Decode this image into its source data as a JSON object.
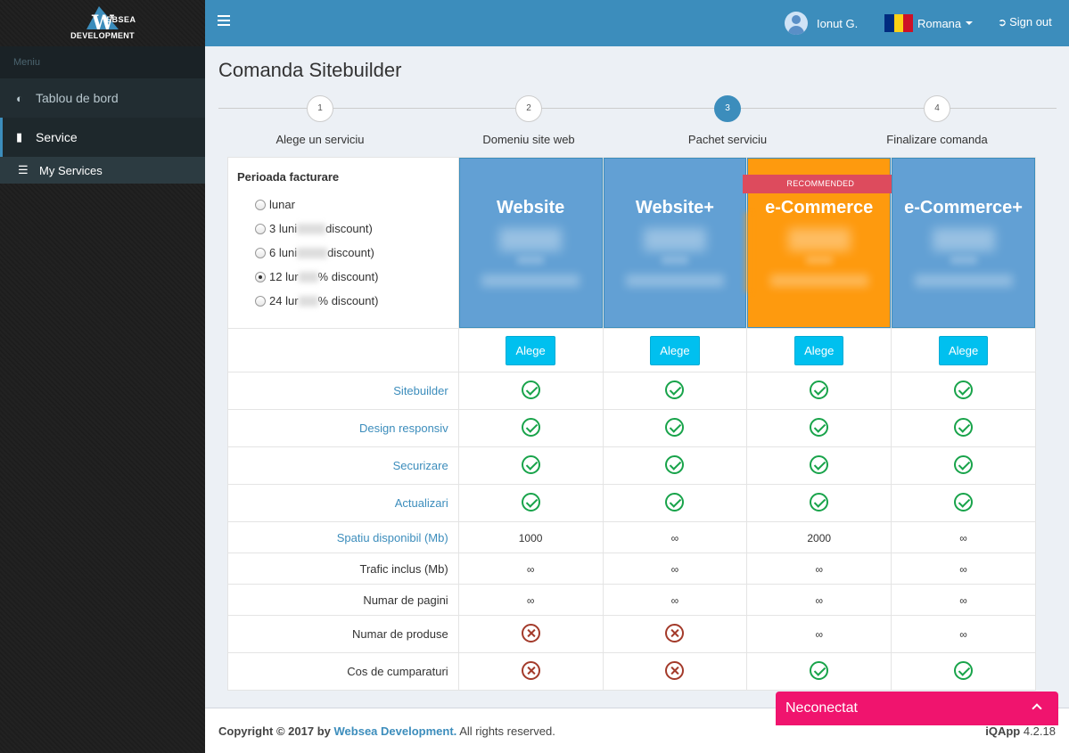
{
  "sidebar": {
    "logo_top": "EBSEA",
    "logo_letter": "W",
    "logo_bottom": "DEVELOPMENT",
    "menu_header": "Meniu",
    "items": [
      {
        "label": "Tablou de bord",
        "icon": "dashboard-icon"
      },
      {
        "label": "Service",
        "icon": "file-icon"
      }
    ],
    "subitems": [
      {
        "label": "My Services",
        "icon": "list-icon"
      }
    ]
  },
  "header": {
    "user_name": "Ionut G.",
    "language": "Romana",
    "signout": "Sign out",
    "flag_colors": [
      "#002b7f",
      "#fcd116",
      "#ce1126"
    ],
    "accent": "#3c8dbc"
  },
  "page": {
    "title": "Comanda Sitebuilder",
    "steps": [
      {
        "num": "1",
        "label": "Alege un serviciu"
      },
      {
        "num": "2",
        "label": "Domeniu site web"
      },
      {
        "num": "3",
        "label": "Pachet serviciu"
      },
      {
        "num": "4",
        "label": "Finalizare comanda"
      }
    ],
    "active_step": 3
  },
  "billing": {
    "title": "Perioada facturare",
    "options": [
      {
        "text": "lunar",
        "suffix": "",
        "checked": false
      },
      {
        "text": "3 luni",
        "suffix": "discount)",
        "checked": false
      },
      {
        "text": "6 luni",
        "suffix": "discount)",
        "checked": false
      },
      {
        "text": "12 lur",
        "suffix": "% discount)",
        "checked": true
      },
      {
        "text": "24 lur",
        "suffix": "% discount)",
        "checked": false
      }
    ]
  },
  "packages": [
    {
      "name": "Website",
      "button": "Alege",
      "recommended": false
    },
    {
      "name": "Website+",
      "button": "Alege",
      "recommended": false
    },
    {
      "name": "e-Commerce",
      "button": "Alege",
      "recommended": true,
      "badge": "RECOMMENDED"
    },
    {
      "name": "e-Commerce+",
      "button": "Alege",
      "recommended": false
    }
  ],
  "features": [
    {
      "label": "Sitebuilder",
      "link": true,
      "values": [
        "check",
        "check",
        "check",
        "check"
      ]
    },
    {
      "label": "Design responsiv",
      "link": true,
      "values": [
        "check",
        "check",
        "check",
        "check"
      ]
    },
    {
      "label": "Securizare",
      "link": true,
      "values": [
        "check",
        "check",
        "check",
        "check"
      ]
    },
    {
      "label": "Actualizari",
      "link": true,
      "values": [
        "check",
        "check",
        "check",
        "check"
      ]
    },
    {
      "label": "Spatiu disponibil (Mb)",
      "link": true,
      "values": [
        "1000",
        "∞",
        "2000",
        "∞"
      ]
    },
    {
      "label": "Trafic inclus (Mb)",
      "link": false,
      "values": [
        "∞",
        "∞",
        "∞",
        "∞"
      ]
    },
    {
      "label": "Numar de pagini",
      "link": false,
      "values": [
        "∞",
        "∞",
        "∞",
        "∞"
      ]
    },
    {
      "label": "Numar de produse",
      "link": false,
      "values": [
        "cross",
        "cross",
        "∞",
        "∞"
      ]
    },
    {
      "label": "Cos de cumparaturi",
      "link": false,
      "values": [
        "cross",
        "cross",
        "check",
        "check"
      ]
    }
  ],
  "footer": {
    "copy_prefix": "Copyright © 2017 by",
    "company": "Websea Development.",
    "copy_suffix": "All rights reserved.",
    "app_name": "iQApp",
    "version": "4.2.18"
  },
  "chat": {
    "status": "Neconectat"
  }
}
